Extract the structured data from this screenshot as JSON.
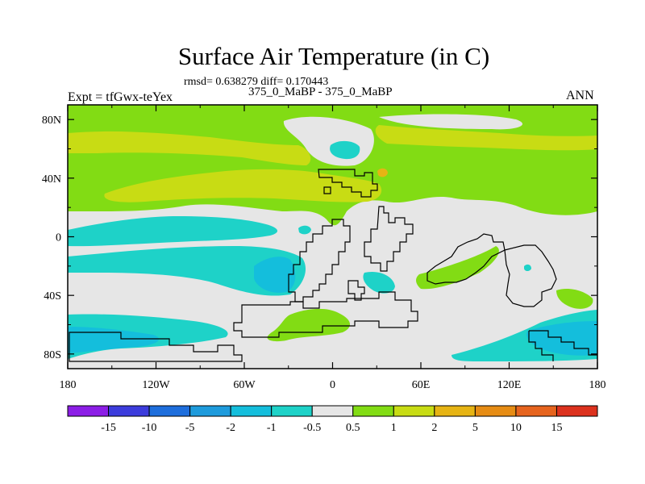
{
  "chart_data": {
    "type": "heatmap",
    "title": "Surface Air Temperature (in C)",
    "subtitle": "rmsd= 0.638279 diff= 0.170443",
    "left_label": "Expt = tfGwx-teYex",
    "center_label": "375_0_MaBP - 375_0_MaBP",
    "right_label": "ANN",
    "xlim": [
      -180,
      180
    ],
    "ylim": [
      -90,
      90
    ],
    "x_ticks": [
      {
        "value": -180,
        "label": "180"
      },
      {
        "value": -120,
        "label": "120W"
      },
      {
        "value": -60,
        "label": "60W"
      },
      {
        "value": 0,
        "label": "0"
      },
      {
        "value": 60,
        "label": "60E"
      },
      {
        "value": 120,
        "label": "120E"
      },
      {
        "value": 180,
        "label": "180"
      }
    ],
    "y_ticks": [
      {
        "value": 80,
        "label": "80N"
      },
      {
        "value": 40,
        "label": "40N"
      },
      {
        "value": 0,
        "label": "0"
      },
      {
        "value": -40,
        "label": "40S"
      },
      {
        "value": -80,
        "label": "80S"
      }
    ],
    "colorbar": {
      "levels": [
        "-15",
        "-10",
        "-5",
        "-2",
        "-1",
        "-0.5",
        "0.5",
        "1",
        "2",
        "5",
        "10",
        "15"
      ],
      "colors": [
        "#8c1ee6",
        "#3c3cdc",
        "#1e6edc",
        "#1e9bdc",
        "#14bedc",
        "#1ed2c8",
        "#e6e6e6",
        "#82dc14",
        "#c8dc14",
        "#e6b414",
        "#e68c14",
        "#e6641e",
        "#dc321e"
      ]
    },
    "regions": [
      {
        "name": "north-green-band",
        "value": 0.75,
        "lon_range": [
          -180,
          180
        ],
        "lat_range": [
          35,
          90
        ]
      },
      {
        "name": "north-yellow-band-west",
        "value": 1.5,
        "lon_range": [
          -180,
          60
        ],
        "lat_range": [
          55,
          72
        ]
      },
      {
        "name": "north-yellow-band-east",
        "value": 1.5,
        "lon_range": [
          60,
          180
        ],
        "lat_range": [
          60,
          70
        ]
      },
      {
        "name": "mid-yellow-tongue",
        "value": 1.5,
        "lon_range": [
          -150,
          50
        ],
        "lat_range": [
          25,
          45
        ]
      },
      {
        "name": "arctic-cyan-patch",
        "value": -0.75,
        "lon_range": [
          0,
          20
        ],
        "lat_range": [
          52,
          62
        ]
      },
      {
        "name": "orange-spot",
        "value": 3.5,
        "lon_range": [
          33,
          37
        ],
        "lat_range": [
          42,
          46
        ]
      },
      {
        "name": "tropical-cyan-band",
        "value": -0.75,
        "lon_range": [
          -180,
          -20
        ],
        "lat_range": [
          -30,
          10
        ]
      },
      {
        "name": "south-atlantic-cyan",
        "value": -1.5,
        "lon_range": [
          -50,
          -20
        ],
        "lat_range": [
          -40,
          -10
        ]
      },
      {
        "name": "southern-green",
        "value": 0.75,
        "lon_range": [
          -10,
          60
        ],
        "lat_range": [
          -70,
          -40
        ]
      },
      {
        "name": "south-pacific-cyan",
        "value": -1.5,
        "lon_range": [
          -180,
          -100
        ],
        "lat_range": [
          -90,
          -60
        ]
      },
      {
        "name": "south-east-cyan",
        "value": -1.5,
        "lon_range": [
          120,
          180
        ],
        "lat_range": [
          -90,
          -60
        ]
      },
      {
        "name": "indian-green",
        "value": 0.75,
        "lon_range": [
          60,
          100
        ],
        "lat_range": [
          -35,
          -10
        ]
      }
    ]
  }
}
